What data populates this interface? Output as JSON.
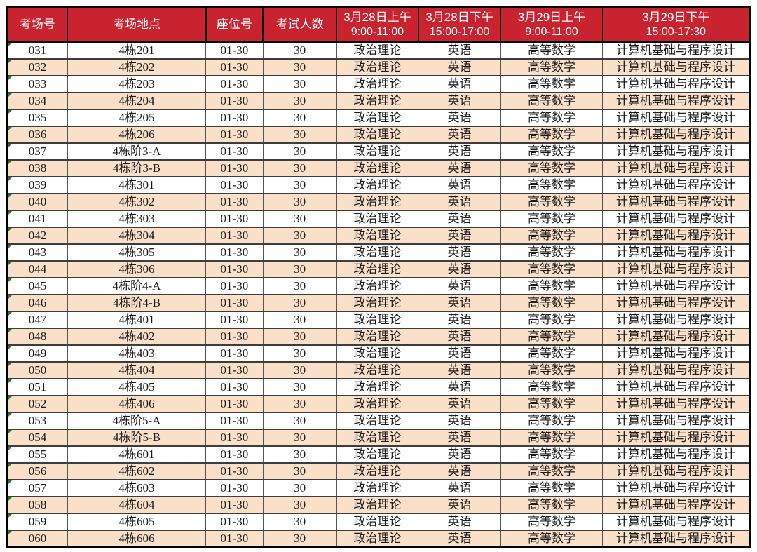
{
  "colors": {
    "header_bg": "#C8232F",
    "header_text": "#FFFFFF",
    "row_bg": "#FFFFFF",
    "row_alt_bg": "#FAE0C9",
    "body_text": "#1A1A1A",
    "outer_border": "#000000",
    "flag_triangle_green": "#1F7A36"
  },
  "table": {
    "column_keys": [
      "room-no",
      "location",
      "seat-no",
      "exam-count",
      "session-mar28-am",
      "session-mar28-pm",
      "session-mar29-am",
      "session-mar29-pm"
    ],
    "column_widths_pct": [
      8.2,
      18.6,
      7.7,
      9.9,
      11.0,
      11.1,
      13.7,
      19.8
    ],
    "headers": [
      {
        "label": "考场号",
        "time": ""
      },
      {
        "label": "考场地点",
        "time": ""
      },
      {
        "label": "座位号",
        "time": ""
      },
      {
        "label": "考试人数",
        "time": ""
      },
      {
        "label": "3月28日上午",
        "time": "9:00-11:00"
      },
      {
        "label": "3月28日下午",
        "time": "15:00-17:00"
      },
      {
        "label": "3月29日上午",
        "time": "9:00-11:00"
      },
      {
        "label": "3月29日下午",
        "time": "15:00-17:30"
      }
    ],
    "rows": [
      [
        "031",
        "4栋201",
        "01-30",
        "30",
        "政治理论",
        "英语",
        "高等数学",
        "计算机基础与程序设计"
      ],
      [
        "032",
        "4栋202",
        "01-30",
        "30",
        "政治理论",
        "英语",
        "高等数学",
        "计算机基础与程序设计"
      ],
      [
        "033",
        "4栋203",
        "01-30",
        "30",
        "政治理论",
        "英语",
        "高等数学",
        "计算机基础与程序设计"
      ],
      [
        "034",
        "4栋204",
        "01-30",
        "30",
        "政治理论",
        "英语",
        "高等数学",
        "计算机基础与程序设计"
      ],
      [
        "035",
        "4栋205",
        "01-30",
        "30",
        "政治理论",
        "英语",
        "高等数学",
        "计算机基础与程序设计"
      ],
      [
        "036",
        "4栋206",
        "01-30",
        "30",
        "政治理论",
        "英语",
        "高等数学",
        "计算机基础与程序设计"
      ],
      [
        "037",
        "4栋阶3-A",
        "01-30",
        "30",
        "政治理论",
        "英语",
        "高等数学",
        "计算机基础与程序设计"
      ],
      [
        "038",
        "4栋阶3-B",
        "01-30",
        "30",
        "政治理论",
        "英语",
        "高等数学",
        "计算机基础与程序设计"
      ],
      [
        "039",
        "4栋301",
        "01-30",
        "30",
        "政治理论",
        "英语",
        "高等数学",
        "计算机基础与程序设计"
      ],
      [
        "040",
        "4栋302",
        "01-30",
        "30",
        "政治理论",
        "英语",
        "高等数学",
        "计算机基础与程序设计"
      ],
      [
        "041",
        "4栋303",
        "01-30",
        "30",
        "政治理论",
        "英语",
        "高等数学",
        "计算机基础与程序设计"
      ],
      [
        "042",
        "4栋304",
        "01-30",
        "30",
        "政治理论",
        "英语",
        "高等数学",
        "计算机基础与程序设计"
      ],
      [
        "043",
        "4栋305",
        "01-30",
        "30",
        "政治理论",
        "英语",
        "高等数学",
        "计算机基础与程序设计"
      ],
      [
        "044",
        "4栋306",
        "01-30",
        "30",
        "政治理论",
        "英语",
        "高等数学",
        "计算机基础与程序设计"
      ],
      [
        "045",
        "4栋阶4-A",
        "01-30",
        "30",
        "政治理论",
        "英语",
        "高等数学",
        "计算机基础与程序设计"
      ],
      [
        "046",
        "4栋阶4-B",
        "01-30",
        "30",
        "政治理论",
        "英语",
        "高等数学",
        "计算机基础与程序设计"
      ],
      [
        "047",
        "4栋401",
        "01-30",
        "30",
        "政治理论",
        "英语",
        "高等数学",
        "计算机基础与程序设计"
      ],
      [
        "048",
        "4栋402",
        "01-30",
        "30",
        "政治理论",
        "英语",
        "高等数学",
        "计算机基础与程序设计"
      ],
      [
        "049",
        "4栋403",
        "01-30",
        "30",
        "政治理论",
        "英语",
        "高等数学",
        "计算机基础与程序设计"
      ],
      [
        "050",
        "4栋404",
        "01-30",
        "30",
        "政治理论",
        "英语",
        "高等数学",
        "计算机基础与程序设计"
      ],
      [
        "051",
        "4栋405",
        "01-30",
        "30",
        "政治理论",
        "英语",
        "高等数学",
        "计算机基础与程序设计"
      ],
      [
        "052",
        "4栋406",
        "01-30",
        "30",
        "政治理论",
        "英语",
        "高等数学",
        "计算机基础与程序设计"
      ],
      [
        "053",
        "4栋阶5-A",
        "01-30",
        "30",
        "政治理论",
        "英语",
        "高等数学",
        "计算机基础与程序设计"
      ],
      [
        "054",
        "4栋阶5-B",
        "01-30",
        "30",
        "政治理论",
        "英语",
        "高等数学",
        "计算机基础与程序设计"
      ],
      [
        "055",
        "4栋601",
        "01-30",
        "30",
        "政治理论",
        "英语",
        "高等数学",
        "计算机基础与程序设计"
      ],
      [
        "056",
        "4栋602",
        "01-30",
        "30",
        "政治理论",
        "英语",
        "高等数学",
        "计算机基础与程序设计"
      ],
      [
        "057",
        "4栋603",
        "01-30",
        "30",
        "政治理论",
        "英语",
        "高等数学",
        "计算机基础与程序设计"
      ],
      [
        "058",
        "4栋604",
        "01-30",
        "30",
        "政治理论",
        "英语",
        "高等数学",
        "计算机基础与程序设计"
      ],
      [
        "059",
        "4栋605",
        "01-30",
        "30",
        "政治理论",
        "英语",
        "高等数学",
        "计算机基础与程序设计"
      ],
      [
        "060",
        "4栋606",
        "01-30",
        "30",
        "政治理论",
        "英语",
        "高等数学",
        "计算机基础与程序设计"
      ]
    ]
  }
}
